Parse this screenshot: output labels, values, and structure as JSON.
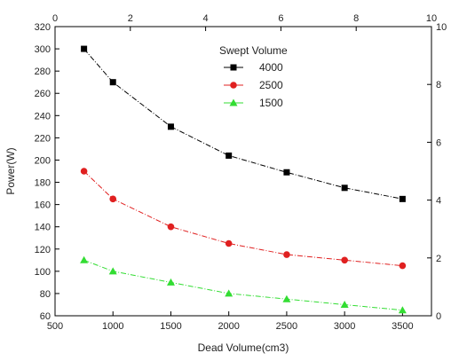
{
  "chart_data": {
    "type": "line",
    "title": "",
    "xlabel": "Dead Volume(cm3)",
    "ylabel": "Power(W)",
    "xlim": [
      500,
      3750
    ],
    "ylim": [
      60,
      320
    ],
    "x_ticks": [
      500,
      1000,
      1500,
      2000,
      2500,
      3000,
      3500
    ],
    "y_ticks": [
      60,
      80,
      100,
      120,
      140,
      160,
      180,
      200,
      220,
      240,
      260,
      280,
      300,
      320
    ],
    "top_axis": {
      "lim": [
        0,
        10
      ],
      "ticks": [
        0,
        2,
        4,
        6,
        8,
        10
      ]
    },
    "right_axis": {
      "lim": [
        0,
        10
      ],
      "ticks": [
        0,
        2,
        4,
        6,
        8,
        10
      ]
    },
    "grid": false,
    "legend": {
      "title": "Swept Volume",
      "placement": "top-center"
    },
    "x": [
      750,
      1000,
      1500,
      2000,
      2500,
      3000,
      3500
    ],
    "series": [
      {
        "name": "4000",
        "color": "#000000",
        "marker": "square",
        "values": [
          300,
          270,
          230,
          204,
          189,
          175,
          165
        ]
      },
      {
        "name": "2500",
        "color": "#e02020",
        "marker": "circle",
        "values": [
          190,
          165,
          140,
          125,
          115,
          110,
          105
        ]
      },
      {
        "name": "1500",
        "color": "#33dd33",
        "marker": "triangle",
        "values": [
          110,
          100,
          90,
          80,
          75,
          70,
          65
        ]
      }
    ]
  }
}
